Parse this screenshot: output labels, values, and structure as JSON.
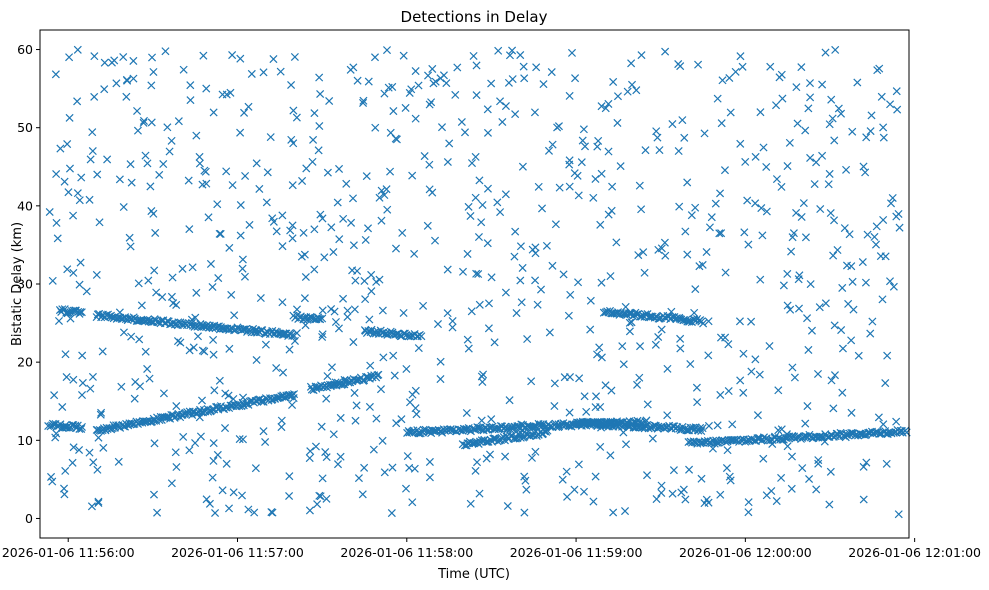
{
  "chart_data": {
    "type": "scatter",
    "title": "Detections in Delay",
    "xlabel": "Time (UTC)",
    "ylabel": "Bistatic Delay (km)",
    "marker": "x",
    "color": "#1f77b4",
    "grid": false,
    "xlim": [
      "2026-01-06 11:55:50",
      "2026-01-06 12:00:58"
    ],
    "ylim": [
      -2.5,
      62.5
    ],
    "x_ticks": [
      "2026-01-06 11:56:00",
      "2026-01-06 11:57:00",
      "2026-01-06 11:58:00",
      "2026-01-06 11:59:00",
      "2026-01-06 12:00:00",
      "2026-01-06 12:01:00"
    ],
    "y_ticks": [
      0,
      10,
      20,
      30,
      40,
      50,
      60
    ],
    "tracks": [
      {
        "t_start": "2026-01-06 11:55:53",
        "t_end": "2026-01-06 11:56:05",
        "y_start": 12.0,
        "y_end": 11.6
      },
      {
        "t_start": "2026-01-06 11:56:10",
        "t_end": "2026-01-06 11:57:20",
        "y_start": 11.3,
        "y_end": 15.8
      },
      {
        "t_start": "2026-01-06 11:57:26",
        "t_end": "2026-01-06 11:57:50",
        "y_start": 16.6,
        "y_end": 18.2
      },
      {
        "t_start": "2026-01-06 11:58:00",
        "t_end": "2026-01-06 11:58:40",
        "y_start": 11.0,
        "y_end": 11.7
      },
      {
        "t_start": "2026-01-06 11:58:20",
        "t_end": "2026-01-06 11:58:50",
        "y_start": 9.5,
        "y_end": 11.0
      },
      {
        "t_start": "2026-01-06 11:58:40",
        "t_end": "2026-01-06 11:59:25",
        "y_start": 11.8,
        "y_end": 12.3
      },
      {
        "t_start": "2026-01-06 11:59:00",
        "t_end": "2026-01-06 11:59:45",
        "y_start": 12.2,
        "y_end": 11.4
      },
      {
        "t_start": "2026-01-06 11:59:40",
        "t_end": "2026-01-06 12:00:58",
        "y_start": 9.6,
        "y_end": 11.2
      },
      {
        "t_start": "2026-01-06 11:55:57",
        "t_end": "2026-01-06 11:56:05",
        "y_start": 26.6,
        "y_end": 26.3
      },
      {
        "t_start": "2026-01-06 11:56:10",
        "t_end": "2026-01-06 11:57:20",
        "y_start": 26.0,
        "y_end": 23.5
      },
      {
        "t_start": "2026-01-06 11:57:20",
        "t_end": "2026-01-06 11:57:30",
        "y_start": 25.8,
        "y_end": 25.5
      },
      {
        "t_start": "2026-01-06 11:57:45",
        "t_end": "2026-01-06 11:58:05",
        "y_start": 24.0,
        "y_end": 23.3
      },
      {
        "t_start": "2026-01-06 11:59:10",
        "t_end": "2026-01-06 11:59:45",
        "y_start": 26.5,
        "y_end": 25.2
      }
    ]
  }
}
